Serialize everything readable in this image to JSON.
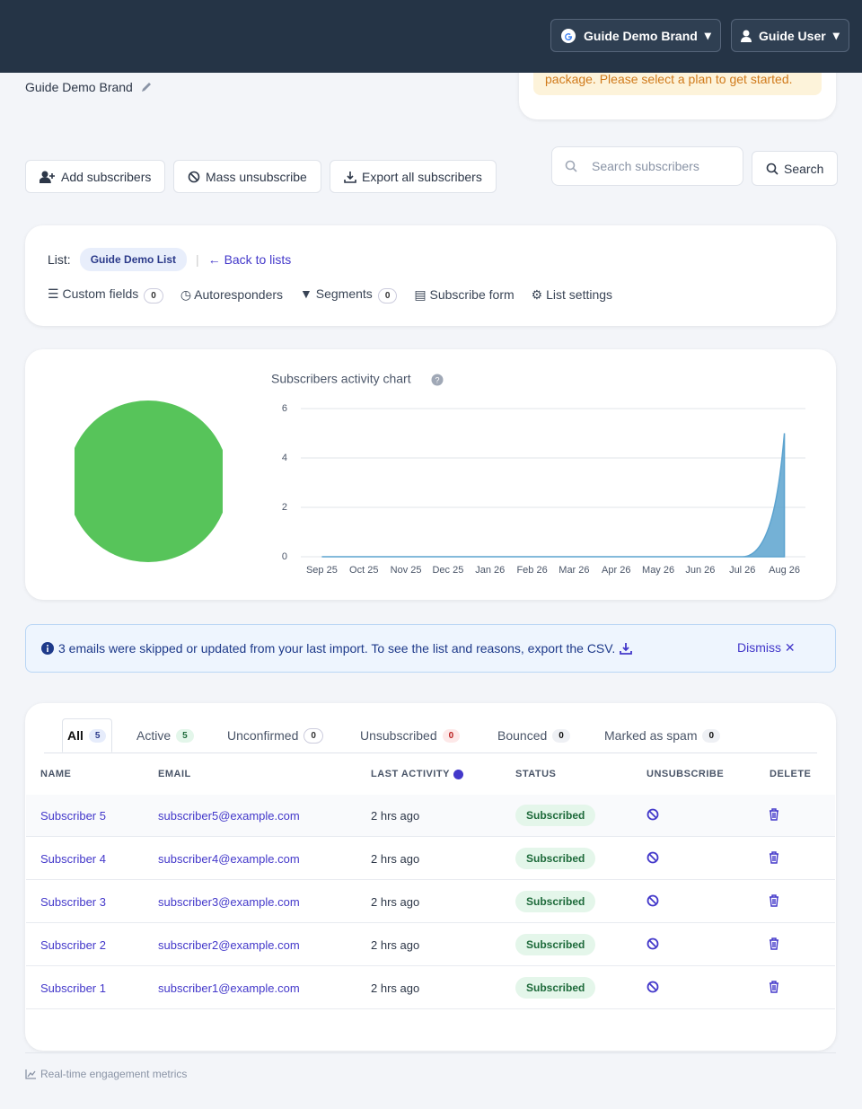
{
  "nav": {
    "brand": "Guide Demo Brand",
    "user": "Guide User"
  },
  "header": {
    "brand_name": "Guide Demo Brand",
    "notice": "package. Please select a plan to get started."
  },
  "actions": {
    "add": "Add subscribers",
    "mass_unsubscribe": "Mass unsubscribe",
    "export": "Export all subscribers",
    "search_placeholder": "Search subscribers",
    "search": "Search"
  },
  "list_card": {
    "label": "List:",
    "list_name": "Guide Demo List",
    "back": "Back to lists",
    "links": [
      {
        "label": "Custom fields",
        "count": 0
      },
      {
        "label": "Autoresponders"
      },
      {
        "label": "Segments",
        "count": 0
      },
      {
        "label": "Subscribe form"
      },
      {
        "label": "List settings"
      }
    ]
  },
  "chart_data": [
    {
      "type": "pie",
      "values": [
        100
      ],
      "colors": [
        "#57c45a"
      ]
    },
    {
      "type": "area",
      "title": "Subscribers activity chart",
      "categories": [
        "Sep 25",
        "Oct 25",
        "Nov 25",
        "Dec 25",
        "Jan 26",
        "Feb 26",
        "Mar 26",
        "Apr 26",
        "May 26",
        "Jun 26",
        "Jul 26",
        "Aug 26"
      ],
      "values": [
        0,
        0,
        0,
        0,
        0,
        0,
        0,
        0,
        0,
        0,
        0,
        5
      ],
      "ylim": [
        0,
        6
      ],
      "yticks": [
        0,
        2,
        4,
        6
      ],
      "color": "#5ca3cf",
      "grid": true
    }
  ],
  "alert": {
    "text": "3 emails were skipped or updated from your last import. To see the list and reasons, export the CSV.",
    "dismiss": "Dismiss"
  },
  "table": {
    "tabs": [
      {
        "label": "All",
        "count": 5
      },
      {
        "label": "Active",
        "count": 5
      },
      {
        "label": "Unconfirmed",
        "count": 0
      },
      {
        "label": "Unsubscribed",
        "count": 0
      },
      {
        "label": "Bounced",
        "count": 0
      },
      {
        "label": "Marked as spam",
        "count": 0
      }
    ],
    "columns": [
      "NAME",
      "EMAIL",
      "LAST ACTIVITY",
      "STATUS",
      "UNSUBSCRIBE",
      "DELETE"
    ],
    "rows": [
      [
        "Subscriber 5",
        "subscriber5@example.com",
        "2 hrs ago",
        "Subscribed"
      ],
      [
        "Subscriber 4",
        "subscriber4@example.com",
        "2 hrs ago",
        "Subscribed"
      ],
      [
        "Subscriber 3",
        "subscriber3@example.com",
        "2 hrs ago",
        "Subscribed"
      ],
      [
        "Subscriber 2",
        "subscriber2@example.com",
        "2 hrs ago",
        "Subscribed"
      ],
      [
        "Subscriber 1",
        "subscriber1@example.com",
        "2 hrs ago",
        "Subscribed"
      ]
    ]
  },
  "footer": "Real-time engagement metrics"
}
